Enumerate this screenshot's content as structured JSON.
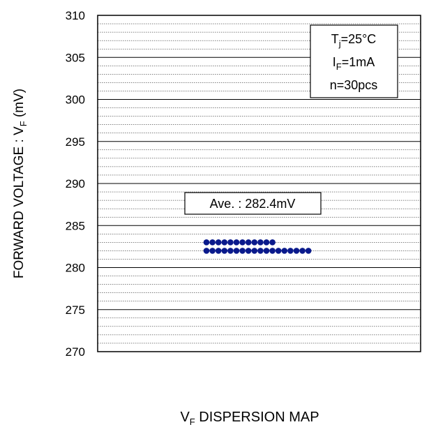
{
  "chart_data": {
    "type": "scatter",
    "title": "",
    "ylabel": {
      "prefix": "FORWARD VOLTAGE : V",
      "sub": "F",
      "suffix": " (mV)"
    },
    "xlabel": {
      "prefix": "V",
      "sub": "F",
      "suffix": " DISPERSION MAP"
    },
    "ylim": [
      270,
      310
    ],
    "y_ticks": [
      310,
      305,
      300,
      295,
      290,
      285,
      280,
      275,
      270
    ],
    "grid": {
      "major": true,
      "minor": true
    },
    "conditions": [
      {
        "prefix": "T",
        "sub": "j",
        "suffix": "=25°C"
      },
      {
        "prefix": "I",
        "sub": "F",
        "suffix": "=1mA"
      },
      {
        "prefix": "",
        "sub": "",
        "suffix": "n=30pcs"
      }
    ],
    "average_label": "Ave. : 282.4mV",
    "marker_color": "#0a1a8c",
    "rows": [
      {
        "value": 283,
        "count": 12
      },
      {
        "value": 282,
        "count": 18
      }
    ]
  }
}
